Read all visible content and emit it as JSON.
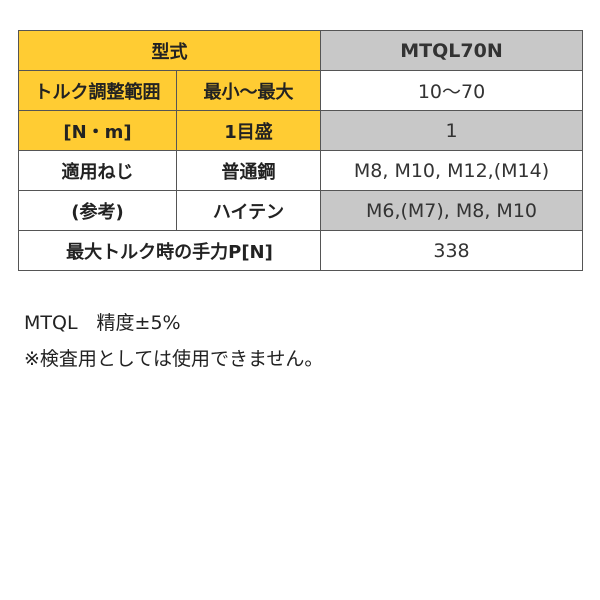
{
  "table": {
    "model_label": "型式",
    "model_value": "MTQL70N",
    "torque_label_1": "トルク調整範囲",
    "torque_label_2": "[N・m]",
    "minmax_label": "最小〜最大",
    "minmax_value": "10〜70",
    "scale_label": "1目盛",
    "scale_value": "1",
    "screw_label_1": "適用ねじ",
    "screw_label_2": "(参考)",
    "steel_label": "普通鋼",
    "steel_value": "M8, M10, M12,(M14)",
    "hiten_label": "ハイテン",
    "hiten_value": "M6,(M7), M8, M10",
    "force_label": "最大トルク時の手力P[N]",
    "force_value": "338"
  },
  "notes": {
    "accuracy": "MTQL　精度±5%",
    "warning": "※検査用としては使用できません。"
  },
  "colors": {
    "header": "#FFCC33",
    "shaded": "#C8C8C8"
  }
}
